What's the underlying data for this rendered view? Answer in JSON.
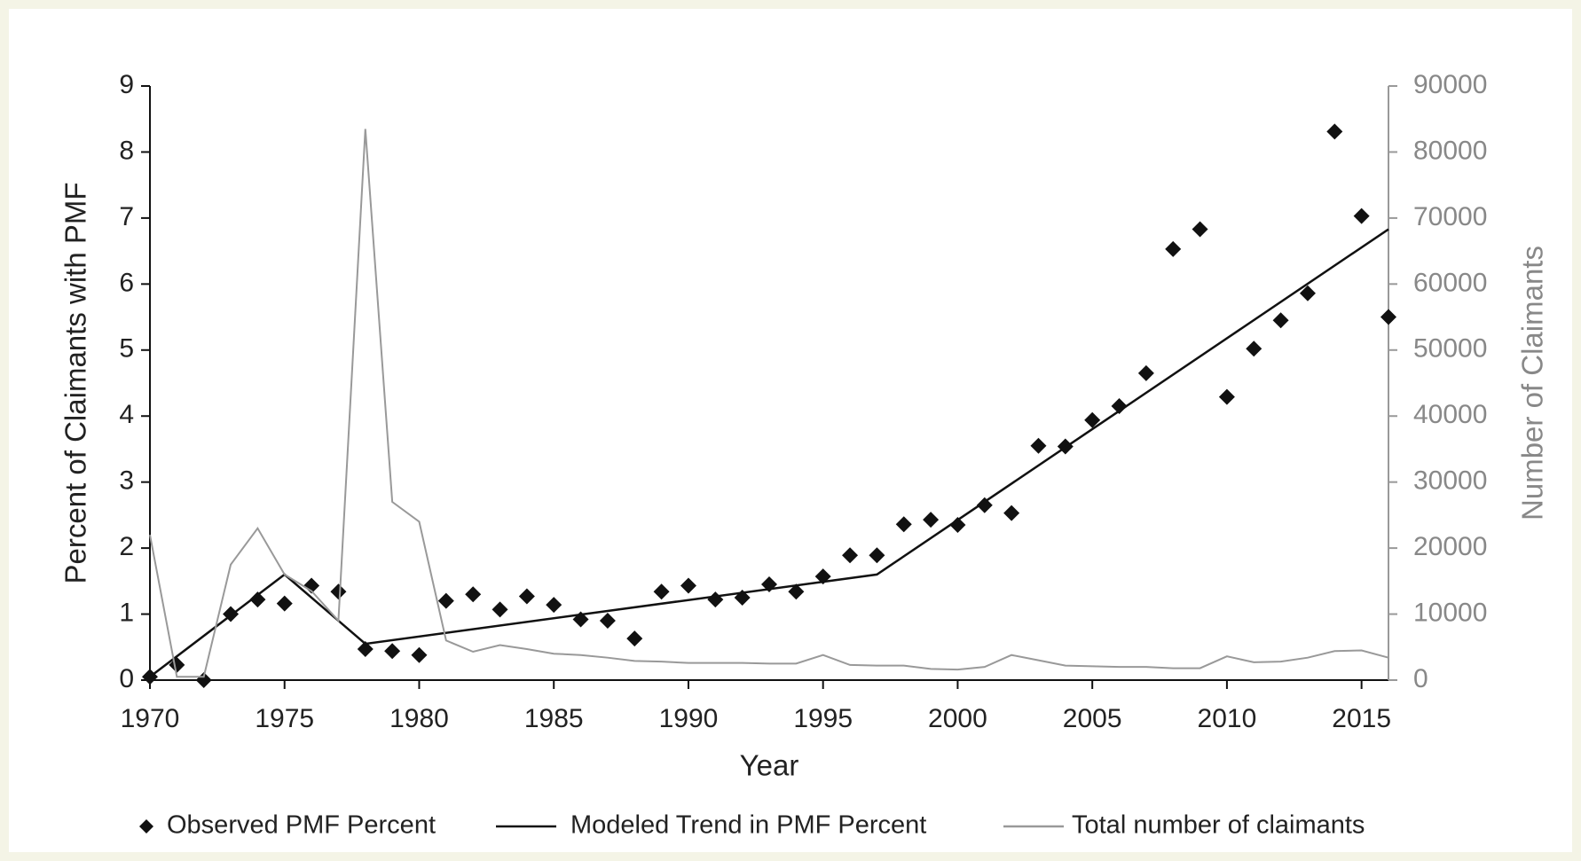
{
  "chart_data": {
    "type": "line",
    "xlabel": "Year",
    "ylabel": "Percent of Claimants with PMF",
    "y2label": "Number of Claimants",
    "xlim": [
      1970,
      2016
    ],
    "xticks": [
      1970,
      1975,
      1980,
      1985,
      1990,
      1995,
      2000,
      2005,
      2010,
      2015
    ],
    "ylim": [
      0,
      9
    ],
    "yticks": [
      0,
      1,
      2,
      3,
      4,
      5,
      6,
      7,
      8,
      9
    ],
    "y2lim": [
      0,
      90000
    ],
    "y2ticks": [
      0,
      10000,
      20000,
      30000,
      40000,
      50000,
      60000,
      70000,
      80000,
      90000
    ],
    "legend": "bottom",
    "series": [
      {
        "name": "Observed PMF Percent",
        "color": "#111111",
        "style": "markers",
        "x": [
          1970,
          1971,
          1972,
          1973,
          1974,
          1975,
          1976,
          1977,
          1978,
          1979,
          1980,
          1981,
          1982,
          1983,
          1984,
          1985,
          1986,
          1987,
          1988,
          1989,
          1990,
          1991,
          1992,
          1993,
          1994,
          1995,
          1996,
          1997,
          1998,
          1999,
          2000,
          2001,
          2002,
          2003,
          2004,
          2005,
          2006,
          2007,
          2008,
          2009,
          2010,
          2011,
          2012,
          2013,
          2014,
          2015,
          2016
        ],
        "values": [
          0.05,
          0.23,
          0.0,
          1.0,
          1.22,
          1.16,
          1.43,
          1.34,
          0.47,
          0.44,
          0.38,
          1.2,
          1.3,
          1.07,
          1.27,
          1.14,
          0.92,
          0.9,
          0.63,
          1.34,
          1.43,
          1.22,
          1.25,
          1.45,
          1.34,
          1.57,
          1.89,
          1.89,
          2.36,
          2.43,
          2.35,
          2.65,
          2.53,
          3.55,
          3.54,
          3.94,
          4.15,
          4.65,
          6.53,
          6.83,
          4.29,
          5.02,
          5.45,
          5.86,
          8.31,
          7.03,
          5.5
        ]
      },
      {
        "name": "Modeled Trend in PMF Percent",
        "color": "#111111",
        "style": "line",
        "x": [
          1970,
          1975,
          1978,
          1997,
          2016
        ],
        "values": [
          0.05,
          1.6,
          0.55,
          1.6,
          6.83
        ]
      },
      {
        "name": "Total number of claimants",
        "color": "#999999",
        "style": "line",
        "axis": "y2",
        "x": [
          1970,
          1971,
          1972,
          1973,
          1974,
          1975,
          1976,
          1977,
          1978,
          1979,
          1980,
          1981,
          1982,
          1983,
          1984,
          1985,
          1986,
          1987,
          1988,
          1989,
          1990,
          1991,
          1992,
          1993,
          1994,
          1995,
          1996,
          1997,
          1998,
          1999,
          2000,
          2001,
          2002,
          2003,
          2004,
          2005,
          2006,
          2007,
          2008,
          2009,
          2010,
          2011,
          2012,
          2013,
          2014,
          2015,
          2016
        ],
        "values": [
          22000,
          500,
          500,
          17500,
          23000,
          16000,
          13500,
          9000,
          83500,
          27000,
          24000,
          6000,
          4300,
          5300,
          4700,
          4000,
          3800,
          3400,
          2900,
          2800,
          2600,
          2600,
          2600,
          2500,
          2500,
          3800,
          2300,
          2200,
          2200,
          1700,
          1600,
          2000,
          3800,
          3000,
          2200,
          2100,
          2000,
          2000,
          1800,
          1800,
          3600,
          2700,
          2800,
          3400,
          4400,
          4500,
          3400
        ]
      }
    ]
  }
}
